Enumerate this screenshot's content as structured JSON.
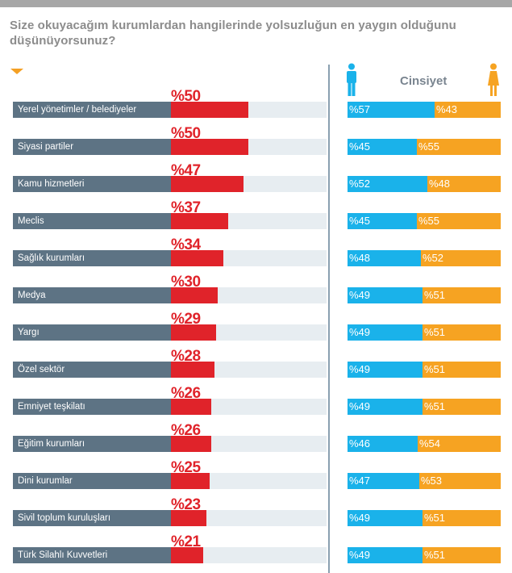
{
  "question": "Size okuyacağım kurumlardan hangilerinde yolsuzluğun en yaygın olduğunu düşünüyorsunuz?",
  "gender_title": "Cinsiyet",
  "colors": {
    "overall": "#e0232a",
    "male": "#1ab2ea",
    "female": "#f6a322",
    "label": "#5d7384"
  },
  "chart_data": {
    "type": "bar",
    "title": "Size okuyacağım kurumlardan hangilerinde yolsuzluğun en yaygın olduğunu düşünüyorsunuz?",
    "xmax": 100,
    "categories": [
      {
        "name": "Yerel yönetimler / belediyeler",
        "value": 50,
        "value_label": "%50",
        "male": 57,
        "male_label": "%57",
        "female": 43,
        "female_label": "%43"
      },
      {
        "name": "Siyasi partiler",
        "value": 50,
        "value_label": "%50",
        "male": 45,
        "male_label": "%45",
        "female": 55,
        "female_label": "%55"
      },
      {
        "name": "Kamu hizmetleri",
        "value": 47,
        "value_label": "%47",
        "male": 52,
        "male_label": "%52",
        "female": 48,
        "female_label": "%48"
      },
      {
        "name": "Meclis",
        "value": 37,
        "value_label": "%37",
        "male": 45,
        "male_label": "%45",
        "female": 55,
        "female_label": "%55"
      },
      {
        "name": "Sağlık kurumları",
        "value": 34,
        "value_label": "%34",
        "male": 48,
        "male_label": "%48",
        "female": 52,
        "female_label": "%52"
      },
      {
        "name": "Medya",
        "value": 30,
        "value_label": "%30",
        "male": 49,
        "male_label": "%49",
        "female": 51,
        "female_label": "%51"
      },
      {
        "name": "Yargı",
        "value": 29,
        "value_label": "%29",
        "male": 49,
        "male_label": "%49",
        "female": 51,
        "female_label": "%51"
      },
      {
        "name": "Özel sektör",
        "value": 28,
        "value_label": "%28",
        "male": 49,
        "male_label": "%49",
        "female": 51,
        "female_label": "%51"
      },
      {
        "name": "Emniyet teşkilatı",
        "value": 26,
        "value_label": "%26",
        "male": 49,
        "male_label": "%49",
        "female": 51,
        "female_label": "%51"
      },
      {
        "name": "Eğitim kurumları",
        "value": 26,
        "value_label": "%26",
        "male": 46,
        "male_label": "%46",
        "female": 54,
        "female_label": "%54"
      },
      {
        "name": "Dini kurumlar",
        "value": 25,
        "value_label": "%25",
        "male": 47,
        "male_label": "%47",
        "female": 53,
        "female_label": "%53"
      },
      {
        "name": "Sivil toplum kuruluşları",
        "value": 23,
        "value_label": "%23",
        "male": 49,
        "male_label": "%49",
        "female": 51,
        "female_label": "%51"
      },
      {
        "name": "Türk Silahlı Kuvvetleri",
        "value": 21,
        "value_label": "%21",
        "male": 49,
        "male_label": "%49",
        "female": 51,
        "female_label": "%51"
      }
    ]
  }
}
